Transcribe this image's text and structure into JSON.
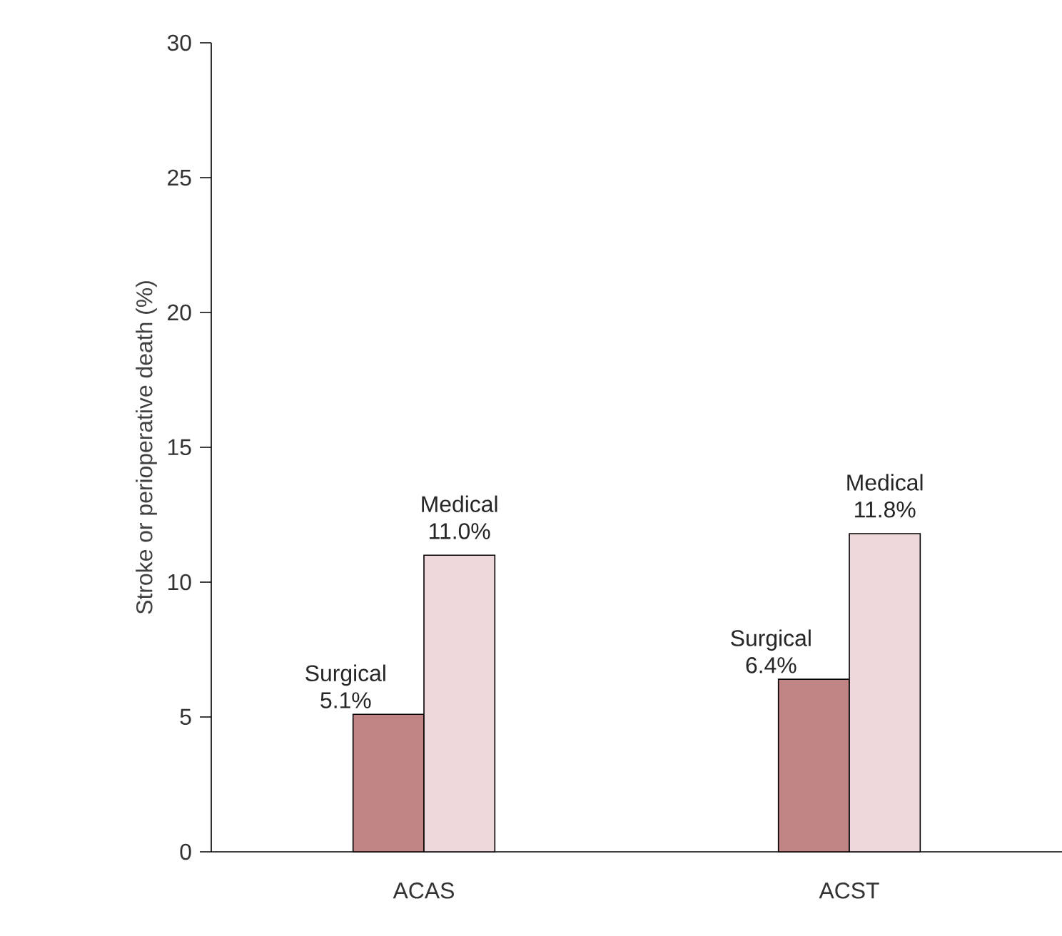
{
  "chart_data": {
    "type": "bar",
    "ylabel": "Stroke or perioperative death (%)",
    "categories": [
      "ACAS",
      "ACST"
    ],
    "series": [
      {
        "name": "Surgical",
        "color": "#c08484",
        "values": [
          5.1,
          6.4
        ],
        "value_labels": [
          "5.1%",
          "6.4%"
        ]
      },
      {
        "name": "Medical",
        "color": "#eed8dc",
        "values": [
          11.0,
          11.8
        ],
        "value_labels": [
          "11.0%",
          "11.8%"
        ]
      }
    ],
    "ylim": [
      0,
      30
    ],
    "yticks": [
      0,
      5,
      10,
      15,
      20,
      25,
      30
    ],
    "grid": false
  }
}
